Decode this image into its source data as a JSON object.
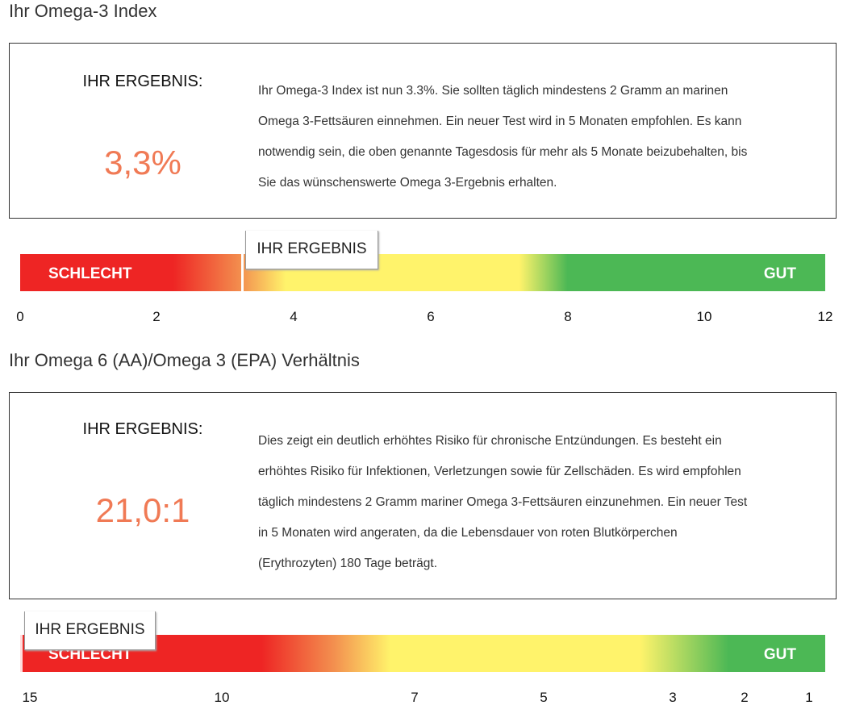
{
  "omega3": {
    "title": "Ihr Omega-3 Index",
    "result_label": "IHR ERGEBNIS:",
    "result_value": "3,3%",
    "description_lines": [
      "Ihr Omega-3 Index ist nun 3.3%. Sie sollten täglich mindestens 2 Gramm an marinen",
      "Omega 3-Fettsäuren einnehmen. Ein neuer Test wird in 5 Monaten empfohlen. Es kann",
      "notwendig sein, die oben genannte Tagesdosis für mehr als 5 Monate beizubehalten, bis",
      "Sie das wünschenswerte Omega 3-Ergebnis erhalten."
    ],
    "scale": {
      "marker_label": "IHR ERGEBNIS",
      "bad_label": "SCHLECHT",
      "good_label": "GUT",
      "value": 3.3,
      "range": [
        0,
        12
      ],
      "ticks": [
        "0",
        "2",
        "4",
        "6",
        "8",
        "10",
        "12"
      ]
    }
  },
  "ratio": {
    "title": "Ihr Omega 6 (AA)/Omega 3 (EPA) Verhältnis",
    "result_label": "IHR ERGEBNIS:",
    "result_value": "21,0:1",
    "description_lines": [
      "Dies zeigt ein deutlich erhöhtes Risiko für chronische Entzündungen. Es besteht ein",
      "erhöhtes Risiko für Infektionen, Verletzungen sowie für Zellschäden. Es wird empfohlen",
      "täglich mindestens 2 Gramm mariner Omega 3-Fettsäuren einzunehmen. Ein neuer Test",
      "in 5 Monaten wird angeraten, da die Lebensdauer von roten Blutkörperchen",
      "(Erythrozyten) 180 Tage beträgt."
    ],
    "scale": {
      "marker_label": "IHR ERGEBNIS",
      "bad_label": "SCHLECHT",
      "good_label": "GUT",
      "value": 21.0,
      "ticks": [
        "15",
        "10",
        "7",
        "5",
        "3",
        "2",
        "1"
      ]
    }
  },
  "colors": {
    "bad": "#ee2524",
    "mid": "#fff36b",
    "good": "#4cb855",
    "result": "#f07a55"
  }
}
